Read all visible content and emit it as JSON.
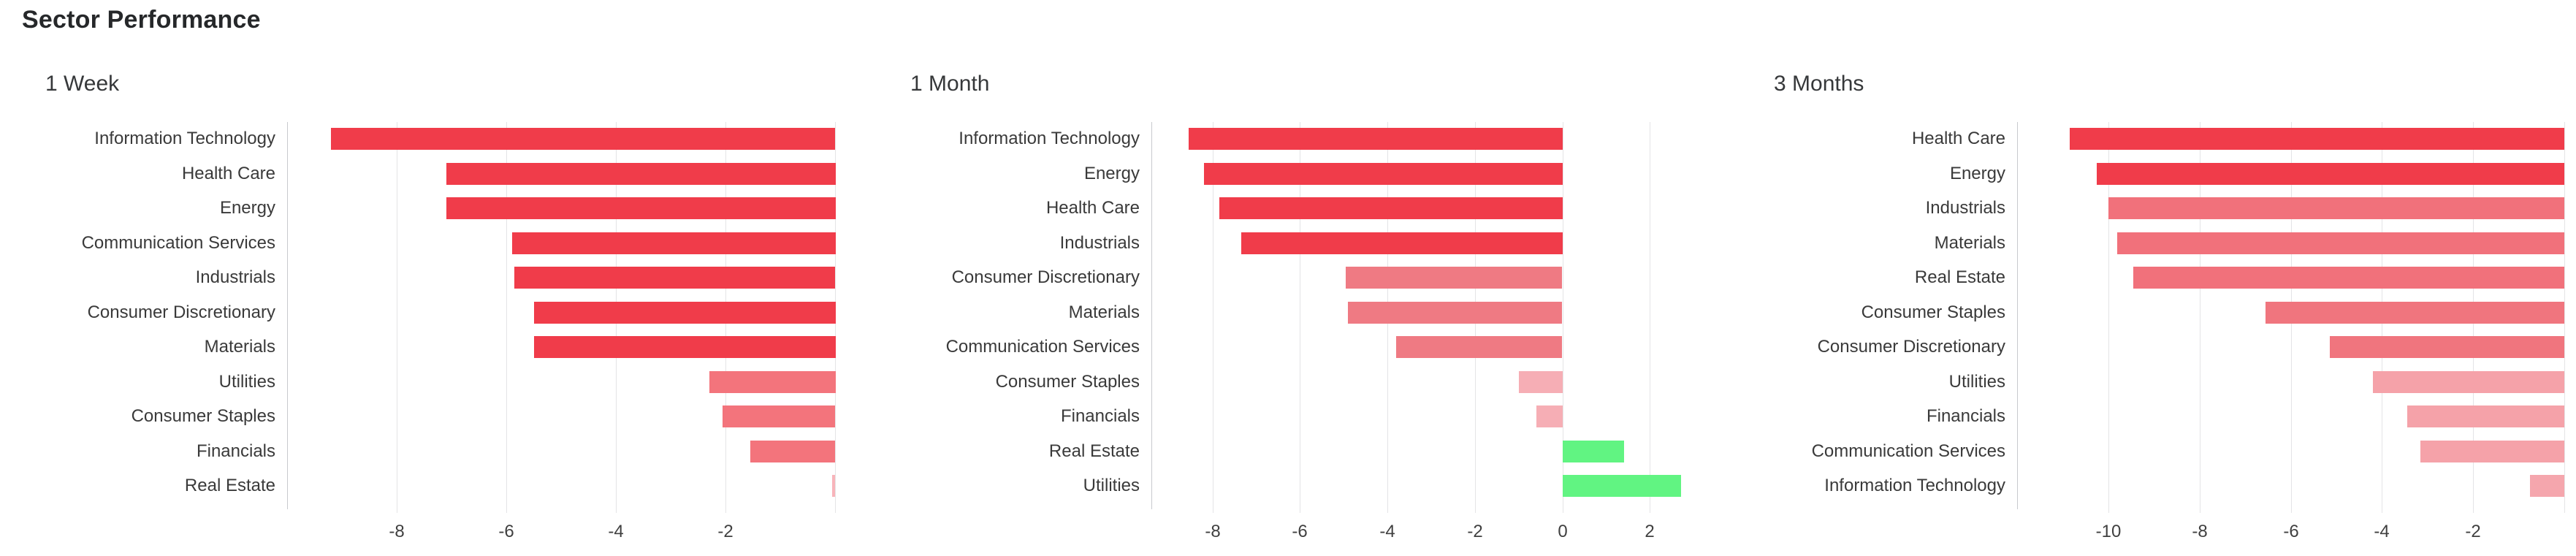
{
  "header": {
    "title": "Sector Performance"
  },
  "chart_data": [
    {
      "type": "bar",
      "orientation": "horizontal",
      "title": "1 Week",
      "xlabel": "",
      "ylabel": "",
      "unit": "percent_change",
      "grid": true,
      "xlim": [
        -10,
        0
      ],
      "xticks": [
        -8,
        -6,
        -4,
        -2
      ],
      "categories": [
        "Information Technology",
        "Health Care",
        "Energy",
        "Communication Services",
        "Industrials",
        "Consumer Discretionary",
        "Materials",
        "Utilities",
        "Consumer Staples",
        "Financials",
        "Real Estate"
      ],
      "values": [
        -9.2,
        -7.1,
        -7.1,
        -5.9,
        -5.85,
        -5.5,
        -5.5,
        -2.3,
        -2.05,
        -1.55,
        -0.05
      ],
      "bar_colors": [
        "#f03c4a",
        "#f03c4a",
        "#f03c4a",
        "#f03c4a",
        "#f03c4a",
        "#f03c4a",
        "#f03c4a",
        "#f3747c",
        "#f3747c",
        "#f3747c",
        "#f8b4ba"
      ]
    },
    {
      "type": "bar",
      "orientation": "horizontal",
      "title": "1 Month",
      "xlabel": "",
      "ylabel": "",
      "unit": "percent_change",
      "grid": true,
      "xlim": [
        -9.4,
        3.2
      ],
      "xticks": [
        -8,
        -6,
        -4,
        -2,
        0,
        2
      ],
      "categories": [
        "Information Technology",
        "Energy",
        "Health Care",
        "Industrials",
        "Consumer Discretionary",
        "Materials",
        "Communication Services",
        "Consumer Staples",
        "Financials",
        "Real Estate",
        "Utilities"
      ],
      "values": [
        -8.55,
        -8.2,
        -7.85,
        -7.35,
        -4.95,
        -4.9,
        -3.8,
        -1.0,
        -0.6,
        1.4,
        2.7
      ],
      "bar_colors": [
        "#f03c4a",
        "#f03c4a",
        "#f03c4a",
        "#f03c4a",
        "#ef7a83",
        "#ef7a83",
        "#ef7a83",
        "#f6aeb5",
        "#f6aeb5",
        "#61f482",
        "#61f482"
      ]
    },
    {
      "type": "bar",
      "orientation": "horizontal",
      "title": "3 Months",
      "xlabel": "",
      "ylabel": "",
      "unit": "percent_change",
      "grid": true,
      "xlim": [
        -12,
        0
      ],
      "xticks": [
        -10,
        -8,
        -6,
        -4,
        -2
      ],
      "categories": [
        "Health Care",
        "Energy",
        "Industrials",
        "Materials",
        "Real Estate",
        "Consumer Staples",
        "Consumer Discretionary",
        "Utilities",
        "Financials",
        "Communication Services",
        "Information Technology"
      ],
      "values": [
        -10.85,
        -10.25,
        -10.0,
        -9.8,
        -9.45,
        -6.55,
        -5.15,
        -4.2,
        -3.45,
        -3.15,
        -0.75
      ],
      "bar_colors": [
        "#f03c4a",
        "#f03c4a",
        "#f1717b",
        "#f1717b",
        "#f1717b",
        "#f0757e",
        "#f0757e",
        "#f5a2a9",
        "#f5a2a9",
        "#f5a2a9",
        "#f5a6ad"
      ]
    }
  ],
  "colors": {
    "negative_full": "#f03c4a",
    "negative_medium": "#f3747c",
    "negative_light": "#f6aeb5",
    "positive": "#61f482",
    "gridline": "#e4e4e6",
    "axis_line": "#c8cace"
  }
}
